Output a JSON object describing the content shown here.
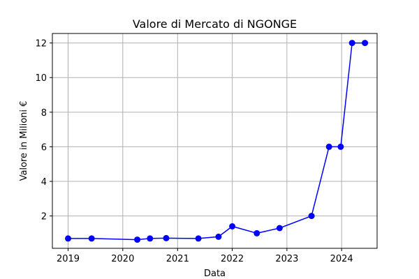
{
  "chart_data": {
    "type": "line",
    "title": "Valore di Mercato di NGONGE",
    "xlabel": "Data",
    "ylabel": "Valore in Milioni €",
    "x_ticks": [
      "2019",
      "2020",
      "2021",
      "2022",
      "2023",
      "2024"
    ],
    "y_ticks": [
      "2",
      "4",
      "6",
      "8",
      "10",
      "12"
    ],
    "ylim": [
      0.13,
      12.55
    ],
    "xlim": [
      "2018-09-18",
      "2024-08-25"
    ],
    "grid": true,
    "color": "#0000ff",
    "series": [
      {
        "x": [
          "2019-01-01",
          "2019-06-07",
          "2020-04-07",
          "2020-07-01",
          "2020-10-17",
          "2021-05-20",
          "2021-10-01",
          "2022-01-01",
          "2022-06-14",
          "2022-11-13",
          "2023-06-14",
          "2023-10-09",
          "2023-12-26",
          "2024-03-11",
          "2024-06-05"
        ],
        "y": [
          0.7,
          0.7,
          0.63,
          0.7,
          0.72,
          0.7,
          0.8,
          1.4,
          1.0,
          1.3,
          2.0,
          6.0,
          6.0,
          12.0,
          12.0
        ]
      }
    ]
  }
}
